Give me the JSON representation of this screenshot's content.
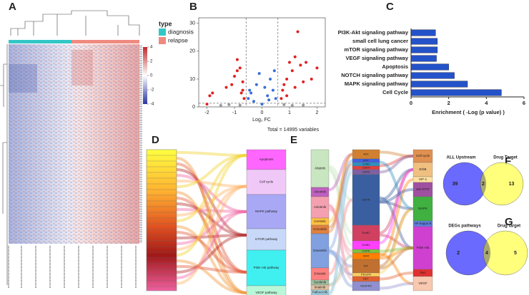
{
  "panel_labels": [
    "A",
    "B",
    "C",
    "D",
    "E",
    "F",
    "G"
  ],
  "heatmap": {
    "legend_title": "type",
    "groups": [
      {
        "name": "diagnosis",
        "color": "#33c6c6"
      },
      {
        "name": "relapse",
        "color": "#f08a80"
      }
    ],
    "scale_ticks": [
      4,
      2,
      0,
      -2,
      -4
    ]
  },
  "chart_data": [
    {
      "type": "scatter",
      "xlabel": "Log₂ FC",
      "caption": "Total = 14995 variables",
      "xlim": [
        -2.3,
        2.3
      ],
      "ylim": [
        0,
        32
      ],
      "xticks": [
        -2,
        -1,
        0,
        1,
        2
      ],
      "yticks": [
        0,
        10,
        20,
        30
      ],
      "series": [
        {
          "color": "#e02020",
          "x": [
            -2,
            -1.9,
            -1.8,
            -1.3,
            -1.0,
            -0.9,
            -0.8,
            -0.9,
            -0.7,
            -1.1,
            -0.75,
            -0.65,
            -0.7,
            1.3,
            1.2,
            1.0,
            1.1,
            1.4,
            1.6,
            0.9,
            0.8,
            0.75,
            1.2,
            0.9,
            1.5,
            0.7,
            1.8,
            2.0
          ],
          "values": [
            1,
            4,
            5,
            7,
            11,
            13,
            14,
            17,
            9,
            8,
            5,
            3,
            6,
            27,
            18,
            16,
            13,
            15,
            16,
            10,
            8,
            6,
            7,
            4,
            9,
            3,
            10,
            14
          ]
        },
        {
          "color": "#3a6fd8",
          "x": [
            -0.5,
            -0.4,
            -0.3,
            0,
            0.2,
            0.4,
            0.5,
            -0.2,
            0.3,
            0.1,
            -0.1,
            0.45,
            -0.45,
            0.25
          ],
          "values": [
            3,
            5,
            2,
            1,
            4,
            6,
            3,
            8,
            10,
            7,
            12,
            13,
            6,
            2.5
          ]
        },
        {
          "color": "#999999",
          "x": [
            -1.5,
            -1.2,
            -0.8,
            0.8,
            1.1,
            1.5
          ],
          "values": [
            0.5,
            0.8,
            0.6,
            0.8,
            0.5,
            0.6
          ]
        }
      ]
    },
    {
      "type": "bar",
      "title": "",
      "xlabel": "Enrichment ( -Log (p value) )",
      "categories": [
        "PI3K-Akt signaling pathway",
        "small cell lung cancer",
        "mTOR signaling pathway",
        "VEGF signaling pathway",
        "Apoptosis",
        "NOTCH signaling pathway",
        "MAPK signaling pathway",
        "Cell Cycle"
      ],
      "values": [
        1.3,
        1.4,
        1.4,
        1.35,
        2.0,
        2.3,
        3.0,
        4.8
      ],
      "color": "#2452c8",
      "xlim": [
        0,
        6
      ],
      "xticks": [
        0,
        2,
        4,
        6
      ]
    }
  ],
  "sankey_d": {
    "pathways": [
      {
        "name": "Apoptosis",
        "color": "#ff66ff"
      },
      {
        "name": "Cell cycle",
        "color": "#f0c8f8"
      },
      {
        "name": "MAPK pathway",
        "color": "#a8a8f4"
      },
      {
        "name": "mTOR pathway",
        "color": "#c8d8f8"
      },
      {
        "name": "PI3K-Akt pathway",
        "color": "#40f0f0"
      },
      {
        "name": "VEGF pathway",
        "color": "#b8f8d8"
      }
    ]
  },
  "sankey_e": {
    "drugs": [
      {
        "name": "Afatinib",
        "color": "#c8e6c0"
      },
      {
        "name": "Alectinib",
        "color": "#c060c0"
      },
      {
        "name": "Anlotinib",
        "color": "#f4a0b0"
      },
      {
        "name": "Ceritinib",
        "color": "#ffc040"
      },
      {
        "name": "Crizotinib",
        "color": "#e08040"
      },
      {
        "name": "Dasatinib",
        "color": "#80a0e0"
      },
      {
        "name": "Erlotinib",
        "color": "#ff8080"
      },
      {
        "name": "Sunitinib",
        "color": "#a0c0a0"
      },
      {
        "name": "Imatinib",
        "color": "#e0c0a0"
      },
      {
        "name": "Palbociclib",
        "color": "#a0d0e0"
      }
    ],
    "targets": [
      {
        "name": "ALK",
        "color": "#d08030"
      },
      {
        "name": "BTK",
        "color": "#4060e0"
      },
      {
        "name": "c-Met",
        "color": "#3090c0"
      },
      {
        "name": "CDK4",
        "color": "#e04040"
      },
      {
        "name": "CDK6",
        "color": "#8060a0"
      },
      {
        "name": "EGFR",
        "color": "#3a5fa0"
      },
      {
        "name": "ErbB2",
        "color": "#d04060"
      },
      {
        "name": "ErbB4",
        "color": "#ff40ff"
      },
      {
        "name": "FGFR",
        "color": "#80c040"
      },
      {
        "name": "KDR",
        "color": "#ff8000"
      },
      {
        "name": "KIT",
        "color": "#c07030"
      },
      {
        "name": "PDGFR",
        "color": "#ffd060"
      },
      {
        "name": "RET",
        "color": "#e06030"
      },
      {
        "name": "VEGFR2",
        "color": "#9090d0"
      }
    ],
    "pathways": [
      {
        "name": "Cell cycle",
        "color": "#e09050"
      },
      {
        "name": "ErbB",
        "color": "#f0c080"
      },
      {
        "name": "HIF-1",
        "color": "#ffe0a0"
      },
      {
        "name": "Jak-STAT",
        "color": "#a050a0"
      },
      {
        "name": "MAPK",
        "color": "#40b040"
      },
      {
        "name": "NF-kappa B",
        "color": "#6080e0"
      },
      {
        "name": "PI3K-Akt",
        "color": "#d040d0"
      },
      {
        "name": "Ras",
        "color": "#e03030"
      },
      {
        "name": "VEGF",
        "color": "#f8c8b0"
      }
    ]
  },
  "venn_f": {
    "left": {
      "label": "ALL Upstream",
      "count": 39,
      "color": "#6a6aff"
    },
    "overlap": 2,
    "right": {
      "label": "Drug Target",
      "count": 13,
      "color": "#ffff66"
    }
  },
  "venn_g": {
    "left": {
      "label": "DEGs pathways",
      "count": 2,
      "color": "#6a6aff"
    },
    "overlap": 4,
    "right": {
      "label": "Drug target",
      "count": 5,
      "color": "#ffff66"
    }
  }
}
